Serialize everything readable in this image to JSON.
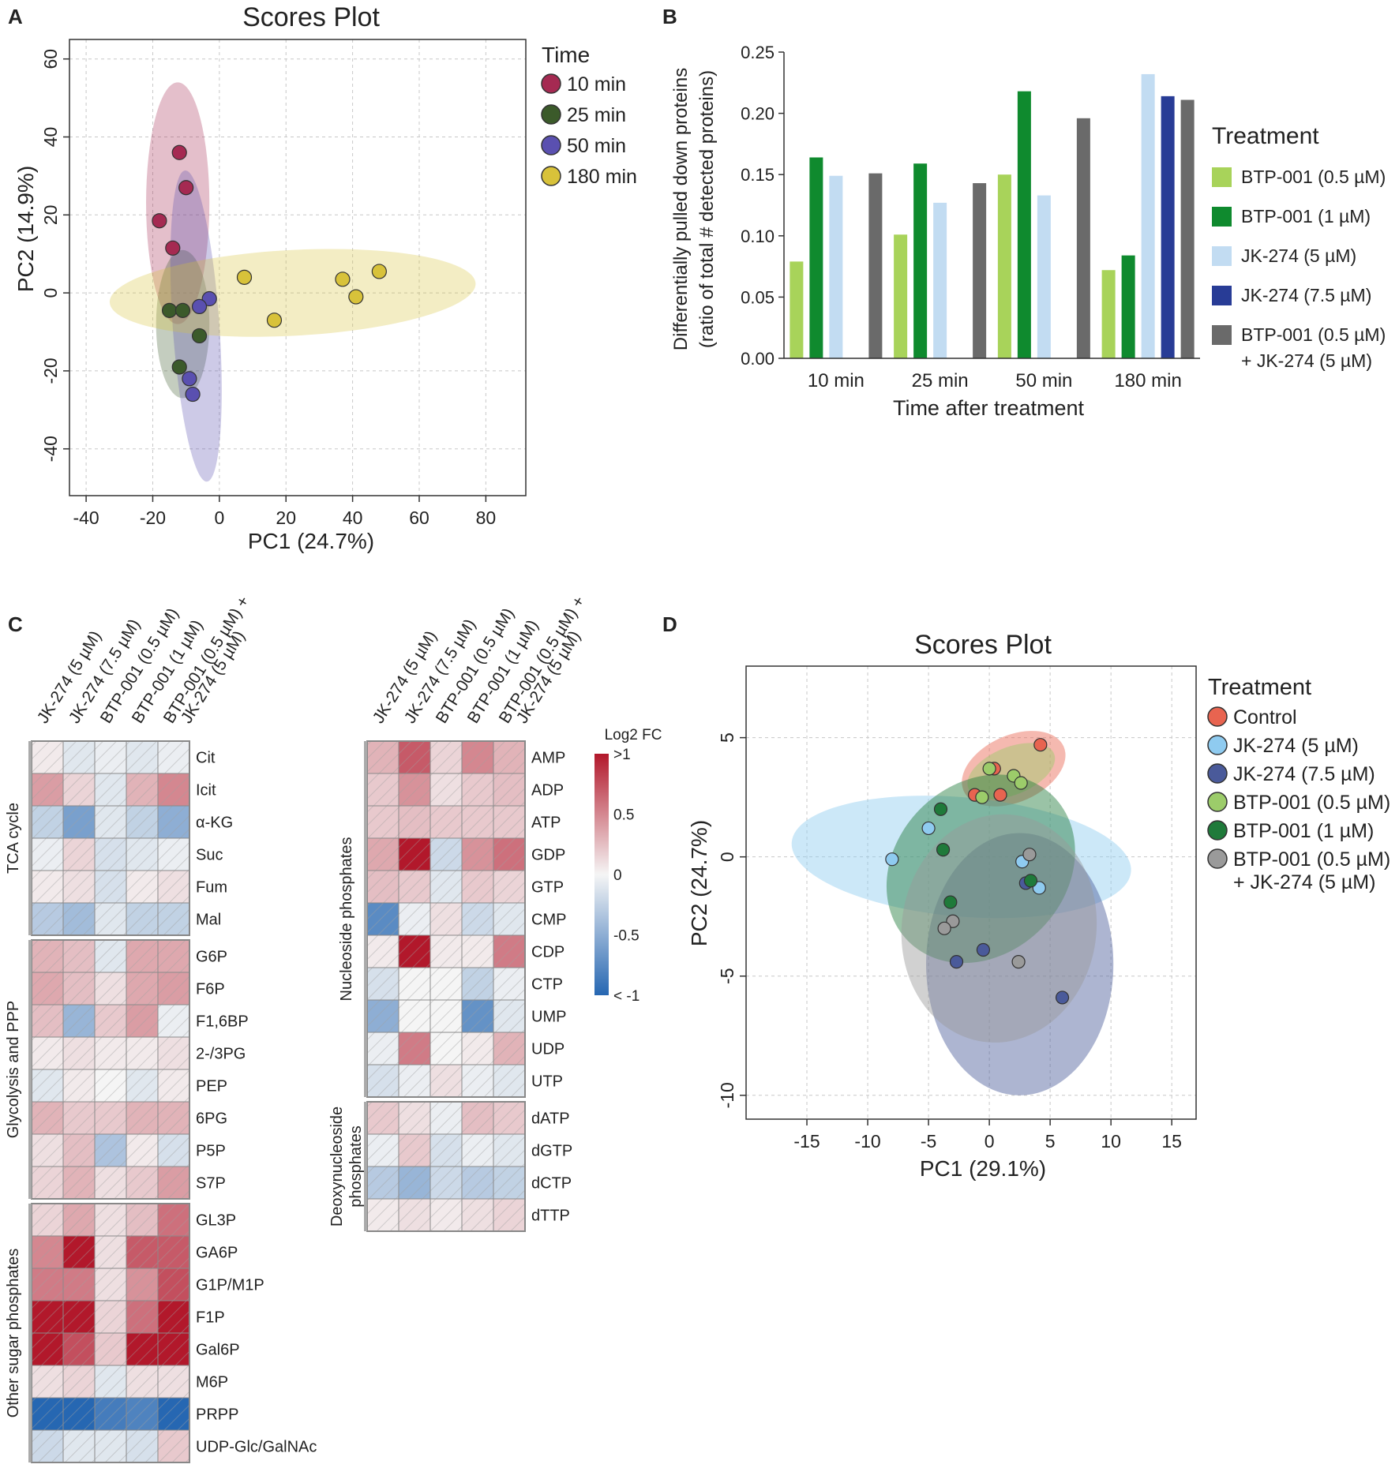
{
  "panels": {
    "a": "A",
    "b": "B",
    "c": "C",
    "d": "D"
  },
  "palette": {
    "time_10": "#a52a52",
    "time_25": "#3b5a2a",
    "time_50": "#5a50b0",
    "time_180": "#d8c23a",
    "btp05": "#a8d35a",
    "btp1": "#0f8a2e",
    "jk5": "#c2dcf2",
    "jk75": "#283c96",
    "combo": "#6a6a6a",
    "control": "#e86450",
    "d_jk5": "#8fcbf0",
    "d_jk75": "#4a5a9a",
    "d_btp05": "#9ccc6a",
    "d_btp1": "#1f7a3a",
    "d_combo": "#9a9a9a"
  },
  "chart_data": [
    {
      "id": "A",
      "type": "scatter",
      "title": "Scores Plot",
      "xlabel": "PC1 (24.7%)",
      "ylabel": "PC2 (14.9%)",
      "xlim": [
        -45,
        92
      ],
      "ylim": [
        -52,
        65
      ],
      "xticks": [
        -40,
        -20,
        0,
        20,
        40,
        60,
        80
      ],
      "yticks": [
        -40,
        -20,
        0,
        20,
        40,
        60
      ],
      "grid": true,
      "legend_title": "Time",
      "legend_position": "right",
      "series": [
        {
          "name": "10 min",
          "color_key": "time_10",
          "points": [
            [
              -12,
              36
            ],
            [
              -10,
              27
            ],
            [
              -18,
              18.5
            ],
            [
              -14,
              11.5
            ]
          ],
          "ellipse": {
            "cx": -12.5,
            "cy": 23,
            "rx": 9.5,
            "ry": 31,
            "angle": 0
          }
        },
        {
          "name": "25 min",
          "color_key": "time_25",
          "points": [
            [
              -15,
              -4.5
            ],
            [
              -11,
              -4.5
            ],
            [
              -6,
              -11
            ],
            [
              -12,
              -19
            ]
          ],
          "ellipse": {
            "cx": -11,
            "cy": -8,
            "rx": 8,
            "ry": 19,
            "angle": 0
          }
        },
        {
          "name": "50 min",
          "color_key": "time_50",
          "points": [
            [
              -3,
              -1.5
            ],
            [
              -6,
              -3.5
            ],
            [
              -9,
              -22
            ],
            [
              -8,
              -26
            ]
          ],
          "ellipse": {
            "cx": -7,
            "cy": -8.5,
            "rx": 7,
            "ry": 40,
            "angle": 4
          }
        },
        {
          "name": "180 min",
          "color_key": "time_180",
          "points": [
            [
              7.5,
              4
            ],
            [
              16.5,
              -7
            ],
            [
              37,
              3.5
            ],
            [
              41,
              -1
            ],
            [
              48,
              5.5
            ]
          ],
          "ellipse": {
            "cx": 22,
            "cy": 0,
            "rx": 55,
            "ry": 11,
            "angle": 3
          }
        }
      ]
    },
    {
      "id": "B",
      "type": "bar",
      "xlabel": "Time after treatment",
      "ylabel_line1": "Differentially pulled down proteins",
      "ylabel_line2": "(ratio of total # detected proteins)",
      "ylim": [
        0,
        0.25
      ],
      "yticks": [
        "0.00",
        "0.05",
        "0.10",
        "0.15",
        "0.20",
        "0.25"
      ],
      "categories": [
        "10 min",
        "25 min",
        "50 min",
        "180 min"
      ],
      "legend_title": "Treatment",
      "legend_position": "right",
      "series": [
        {
          "name": "BTP-001 (0.5 µM)",
          "color_key": "btp05",
          "values": [
            0.079,
            0.101,
            0.15,
            0.072
          ]
        },
        {
          "name": "BTP-001 (1 µM)",
          "color_key": "btp1",
          "values": [
            0.164,
            0.159,
            0.218,
            0.084
          ]
        },
        {
          "name": "JK-274 (5 µM)",
          "color_key": "jk5",
          "values": [
            0.149,
            0.127,
            0.133,
            0.232
          ]
        },
        {
          "name": "JK-274 (7.5 µM)",
          "color_key": "jk75",
          "values": [
            0.0,
            0.0,
            0.0,
            0.214
          ]
        },
        {
          "name": "BTP-001 (0.5 µM)",
          "name_line2": "+ JK-274 (5 µM)",
          "color_key": "combo",
          "values": [
            0.151,
            0.143,
            0.196,
            0.211
          ]
        }
      ]
    },
    {
      "id": "C",
      "type": "heatmap",
      "columns": [
        "JK-274 (5 µM)",
        "JK-274 (7.5 µM)",
        "BTP-001 (0.5 µM)",
        "BTP-001 (1 µM)",
        "BTP-001 (0.5 µM) +",
        "JK-274 (5 µM)"
      ],
      "colorbar": {
        "title": "Log2 FC",
        "labels": [
          ">1",
          "0.5",
          "0",
          "-0.5",
          "< -1"
        ],
        "values": [
          1,
          0.5,
          0,
          -0.5,
          -1
        ]
      },
      "left_groups": [
        {
          "label": "TCA cycle",
          "rows": [
            {
              "name": "Cit",
              "values": [
                0.05,
                -0.1,
                -0.05,
                -0.1,
                -0.05
              ]
            },
            {
              "name": "Icit",
              "values": [
                0.4,
                0.15,
                -0.1,
                0.3,
                0.5
              ]
            },
            {
              "name": "α-KG",
              "values": [
                -0.25,
                -0.6,
                -0.1,
                -0.25,
                -0.5
              ]
            },
            {
              "name": "Suc",
              "values": [
                -0.05,
                0.15,
                -0.15,
                -0.1,
                -0.05
              ]
            },
            {
              "name": "Fum",
              "values": [
                0.05,
                0.1,
                -0.15,
                0.05,
                0.1
              ]
            },
            {
              "name": "Mal",
              "values": [
                -0.3,
                -0.4,
                -0.1,
                -0.25,
                -0.25
              ]
            }
          ]
        },
        {
          "label": "Glycolysis and PPP",
          "rows": [
            {
              "name": "G6P",
              "values": [
                0.3,
                0.25,
                -0.1,
                0.35,
                0.35
              ]
            },
            {
              "name": "F6P",
              "values": [
                0.35,
                0.25,
                0.1,
                0.35,
                0.4
              ]
            },
            {
              "name": "F1,6BP",
              "values": [
                0.25,
                -0.45,
                0.2,
                0.4,
                -0.05
              ]
            },
            {
              "name": "2-/3PG",
              "values": [
                0.05,
                0.1,
                0.05,
                0.05,
                0.1
              ]
            },
            {
              "name": "PEP",
              "values": [
                -0.1,
                0.05,
                0.0,
                -0.1,
                0.05
              ]
            },
            {
              "name": "6PG",
              "values": [
                0.3,
                0.2,
                0.2,
                0.3,
                0.3
              ]
            },
            {
              "name": "P5P",
              "values": [
                0.1,
                0.25,
                -0.35,
                0.05,
                -0.15
              ]
            },
            {
              "name": "S7P",
              "values": [
                0.15,
                0.3,
                0.1,
                0.2,
                0.4
              ]
            }
          ]
        },
        {
          "label": "Other sugar phosphates",
          "rows": [
            {
              "name": "GL3P",
              "values": [
                0.15,
                0.35,
                0.1,
                0.25,
                0.6
              ]
            },
            {
              "name": "GA6P",
              "values": [
                0.5,
                1.0,
                0.1,
                0.7,
                0.7
              ]
            },
            {
              "name": "G1P/M1P",
              "values": [
                0.55,
                0.55,
                0.1,
                0.45,
                0.75
              ]
            },
            {
              "name": "F1P",
              "values": [
                1.0,
                1.0,
                0.15,
                0.6,
                1.0
              ]
            },
            {
              "name": "Gal6P",
              "values": [
                1.0,
                0.75,
                0.2,
                1.0,
                1.0
              ]
            },
            {
              "name": "M6P",
              "values": [
                0.1,
                0.15,
                -0.1,
                0.1,
                0.1
              ]
            },
            {
              "name": "PRPP",
              "values": [
                -1.0,
                -1.0,
                -0.85,
                -0.8,
                -1.0
              ]
            },
            {
              "name": "UDP-Glc/GalNAc",
              "values": [
                -0.2,
                -0.1,
                -0.1,
                -0.15,
                0.2
              ]
            }
          ]
        }
      ],
      "right_groups": [
        {
          "label": "Nucleoside phosphates",
          "rows": [
            {
              "name": "AMP",
              "values": [
                0.3,
                0.7,
                0.15,
                0.5,
                0.3
              ]
            },
            {
              "name": "ADP",
              "values": [
                0.2,
                0.45,
                0.1,
                0.2,
                0.25
              ]
            },
            {
              "name": "ATP",
              "values": [
                0.2,
                0.25,
                0.2,
                0.2,
                0.2
              ]
            },
            {
              "name": "GDP",
              "values": [
                0.35,
                1.0,
                -0.2,
                0.45,
                0.6
              ]
            },
            {
              "name": "GTP",
              "values": [
                0.25,
                0.2,
                -0.1,
                0.2,
                0.15
              ]
            },
            {
              "name": "CMP",
              "values": [
                -0.75,
                -0.05,
                0.1,
                -0.2,
                -0.1
              ]
            },
            {
              "name": "CDP",
              "values": [
                0.05,
                1.0,
                0.05,
                0.05,
                0.55
              ]
            },
            {
              "name": "CTP",
              "values": [
                -0.15,
                0.0,
                0.0,
                -0.25,
                -0.05
              ]
            },
            {
              "name": "UMP",
              "values": [
                -0.5,
                0.0,
                0.0,
                -0.7,
                -0.1
              ]
            },
            {
              "name": "UDP",
              "values": [
                -0.05,
                0.55,
                0.0,
                0.05,
                0.3
              ]
            },
            {
              "name": "UTP",
              "values": [
                -0.15,
                -0.05,
                0.1,
                -0.05,
                -0.1
              ]
            }
          ]
        },
        {
          "label_line1": "Deoxynucleoside",
          "label_line2": "phosphates",
          "rows": [
            {
              "name": "dATP",
              "values": [
                0.2,
                0.1,
                -0.05,
                0.25,
                0.2
              ]
            },
            {
              "name": "dGTP",
              "values": [
                -0.05,
                0.2,
                -0.15,
                -0.05,
                -0.1
              ]
            },
            {
              "name": "dCTP",
              "values": [
                -0.3,
                -0.45,
                -0.2,
                -0.3,
                -0.25
              ]
            },
            {
              "name": "dTTP",
              "values": [
                0.05,
                0.1,
                0.05,
                0.1,
                0.15
              ]
            }
          ]
        }
      ]
    },
    {
      "id": "D",
      "type": "scatter",
      "title": "Scores Plot",
      "xlabel": "PC1 (29.1%)",
      "ylabel": "PC2 (24.7%)",
      "xlim": [
        -20,
        17
      ],
      "ylim": [
        -11,
        8
      ],
      "xticks": [
        -15,
        -10,
        -5,
        0,
        5,
        10,
        15
      ],
      "yticks": [
        -10,
        -5,
        0,
        5
      ],
      "grid": true,
      "legend_title": "Treatment",
      "legend_position": "right",
      "series": [
        {
          "name": "Control",
          "color_key": "control",
          "points": [
            [
              4.2,
              4.7
            ],
            [
              0.4,
              3.7
            ],
            [
              -1.2,
              2.6
            ],
            [
              0.9,
              2.6
            ]
          ],
          "ellipse": {
            "cx": 2.0,
            "cy": 3.7,
            "rx": 4.5,
            "ry": 1.4,
            "angle": 24
          }
        },
        {
          "name": "JK-274 (5 µM)",
          "color_key": "d_jk5",
          "points": [
            [
              -8,
              -0.1
            ],
            [
              -5,
              1.2
            ],
            [
              2.7,
              -0.2
            ],
            [
              4.1,
              -1.3
            ]
          ],
          "ellipse": {
            "cx": -2.3,
            "cy": 0,
            "rx": 14,
            "ry": 2.5,
            "angle": -5
          }
        },
        {
          "name": "JK-274 (7.5 µM)",
          "color_key": "d_jk75",
          "points": [
            [
              3,
              -1.1
            ],
            [
              -0.5,
              -3.9
            ],
            [
              -2.7,
              -4.4
            ],
            [
              6,
              -5.9
            ]
          ],
          "ellipse": {
            "cx": 2.5,
            "cy": -4.5,
            "rx": 7.7,
            "ry": 5.5,
            "angle": 0
          }
        },
        {
          "name": "BTP-001 (0.5 µM)",
          "color_key": "d_btp05",
          "points": [
            [
              0,
              3.7
            ],
            [
              -0.6,
              2.5
            ],
            [
              2,
              3.4
            ],
            [
              2.6,
              3.1
            ]
          ],
          "ellipse": {
            "cx": 1.8,
            "cy": 3.6,
            "rx": 3.8,
            "ry": 1.0,
            "angle": 22
          }
        },
        {
          "name": "BTP-001 (1 µM)",
          "color_key": "d_btp1",
          "points": [
            [
              -4,
              2.0
            ],
            [
              -3.8,
              0.3
            ],
            [
              -3.2,
              -1.9
            ],
            [
              3.4,
              -1.0
            ]
          ],
          "ellipse": {
            "cx": -0.7,
            "cy": -0.5,
            "rx": 7.0,
            "ry": 4.3,
            "angle": -45
          }
        },
        {
          "name": "BTP-001 (0.5 µM)",
          "name_line2": "+ JK-274 (5 µM)",
          "color_key": "d_combo",
          "points": [
            [
              3.3,
              0.1
            ],
            [
              -3,
              -2.7
            ],
            [
              -3.7,
              -3.0
            ],
            [
              2.4,
              -4.4
            ]
          ],
          "ellipse": {
            "cx": 0.8,
            "cy": -3.0,
            "rx": 8.0,
            "ry": 4.8,
            "angle": -8
          }
        }
      ]
    }
  ]
}
